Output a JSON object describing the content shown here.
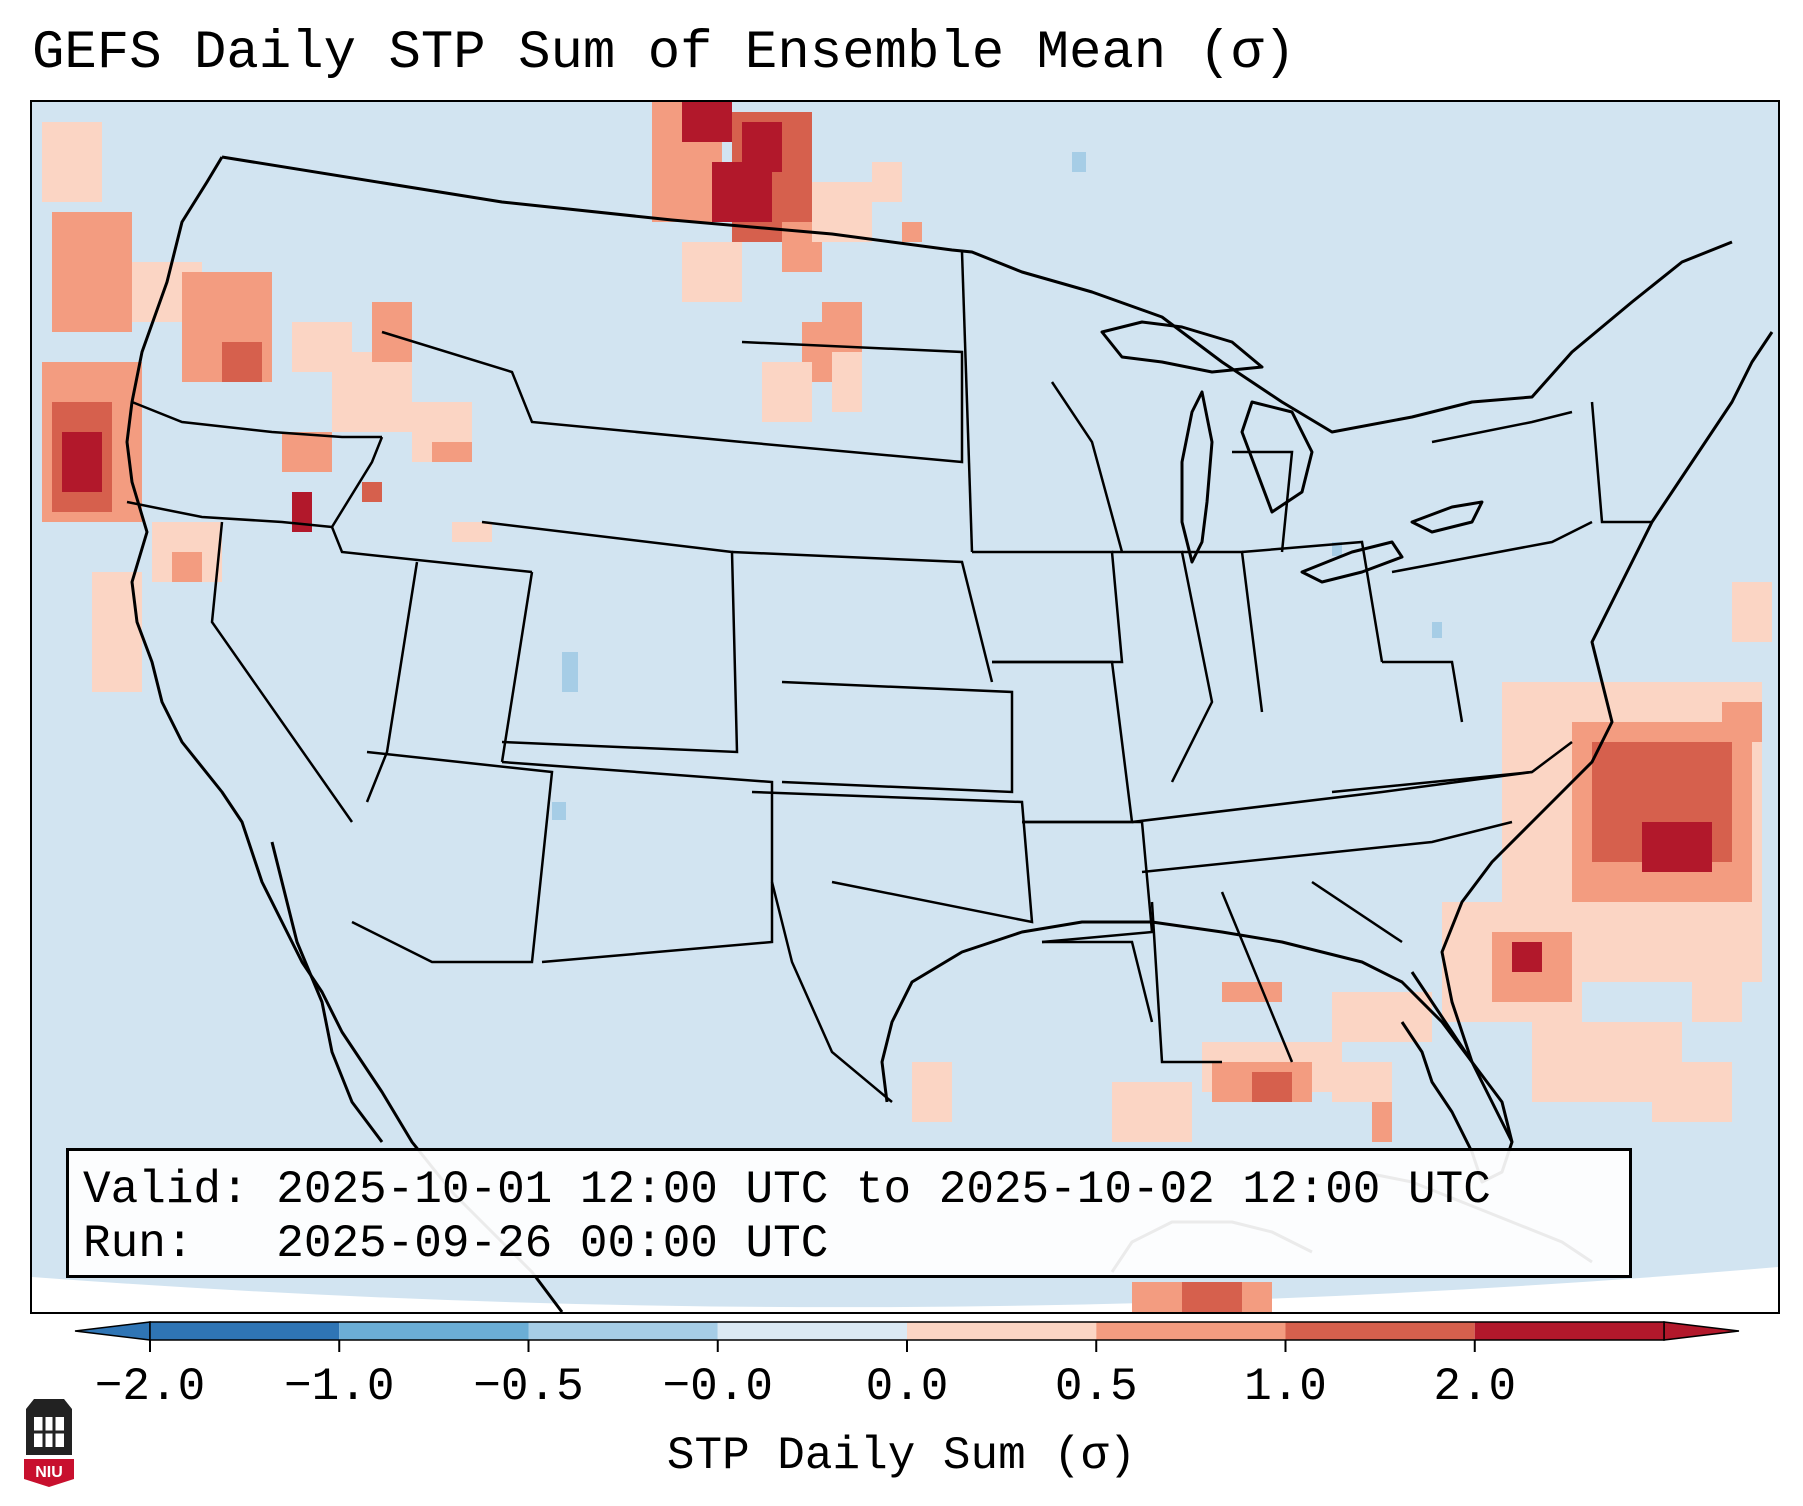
{
  "title": "GEFS Daily STP Sum of Ensemble Mean (σ)",
  "valid_line": "Valid: 2025-10-01 12:00 UTC to 2025-10-02 12:00 UTC",
  "run_line": "Run:   2025-09-26 00:00 UTC",
  "colorbar": {
    "label": "STP Daily Sum (σ)",
    "ticks": [
      "−2.0",
      "−1.0",
      "−0.5",
      "−0.0",
      "0.0",
      "0.5",
      "1.0",
      "2.0"
    ],
    "colors": [
      "#2f75b5",
      "#6baed6",
      "#a6cde6",
      "#dbe9f3",
      "#fbd5c4",
      "#f39c80",
      "#d6604d",
      "#b2182b"
    ]
  },
  "logo_text": "NIU",
  "map": {
    "projection": "Lambert Conformal — CONUS",
    "background_color": "#d2e4f1",
    "outside_color": "#ffffff",
    "regions": [
      {
        "name": "Pacific Northwest coast",
        "level": 2.0
      },
      {
        "name": "Northern Great Plains (Saskatchewan/North Dakota)",
        "level": 2.0
      },
      {
        "name": "Western Atlantic off Carolinas",
        "level": 2.0
      },
      {
        "name": "Gulf of Mexico / Yucatan",
        "level": 1.0
      }
    ]
  }
}
